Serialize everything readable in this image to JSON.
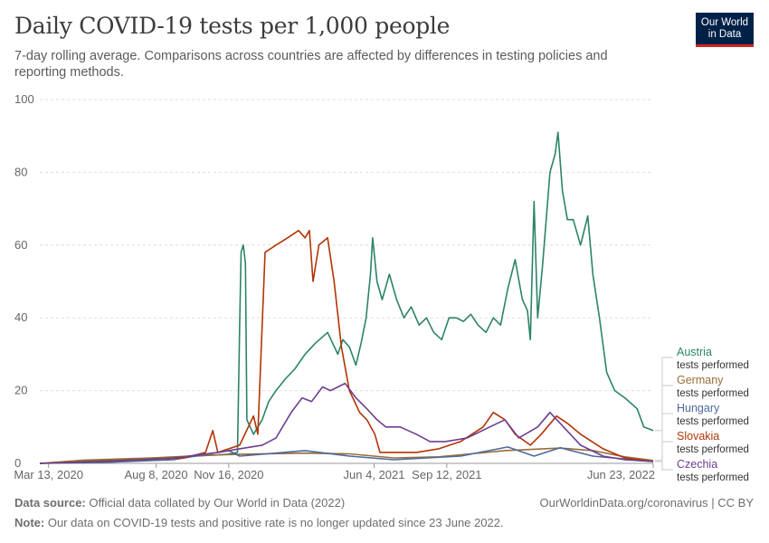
{
  "header": {
    "title": "Daily COVID-19 tests per 1,000 people",
    "subtitle": "7-day rolling average. Comparisons across countries are affected by differences in testing policies and reporting methods.",
    "logo_line1": "Our World",
    "logo_line2": "in Data"
  },
  "footer": {
    "source_label": "Data source:",
    "source_text": "Official data collated by Our World in Data (2022)",
    "note_label": "Note:",
    "note_text": "Our data on COVID-19 tests and positive rate is no longer updated since 23 June 2022.",
    "credit": "OurWorldinData.org/coronavirus | CC BY"
  },
  "chart_data": {
    "type": "line",
    "ylim": [
      0,
      100
    ],
    "yticks": [
      0,
      20,
      40,
      60,
      80,
      100
    ],
    "xlim": [
      "2020-03-01",
      "2022-06-23"
    ],
    "xticks": [
      {
        "date": "2020-03-13",
        "label": "Mar 13, 2020"
      },
      {
        "date": "2020-08-08",
        "label": "Aug 8, 2020"
      },
      {
        "date": "2020-11-16",
        "label": "Nov 16, 2020"
      },
      {
        "date": "2021-06-04",
        "label": "Jun 4, 2021"
      },
      {
        "date": "2021-09-12",
        "label": "Sep 12, 2021"
      },
      {
        "date": "2022-06-23",
        "label": "Jun 23, 2022"
      }
    ],
    "grid": "horizontal dashed",
    "legend": "right",
    "series": [
      {
        "name": "Austria",
        "sublabel": "tests performed",
        "color": "#2c8465",
        "points": [
          [
            "2020-03-01",
            0
          ],
          [
            "2020-04-01",
            0.3
          ],
          [
            "2020-05-01",
            0.6
          ],
          [
            "2020-06-01",
            0.8
          ],
          [
            "2020-08-01",
            1.2
          ],
          [
            "2020-10-01",
            2.0
          ],
          [
            "2020-11-15",
            2.5
          ],
          [
            "2020-11-28",
            3
          ],
          [
            "2020-12-01",
            38
          ],
          [
            "2020-12-03",
            58
          ],
          [
            "2020-12-06",
            60
          ],
          [
            "2020-12-09",
            55
          ],
          [
            "2020-12-11",
            12
          ],
          [
            "2020-12-20",
            8
          ],
          [
            "2021-01-01",
            12
          ],
          [
            "2021-01-10",
            17
          ],
          [
            "2021-01-20",
            20
          ],
          [
            "2021-02-01",
            23
          ],
          [
            "2021-02-15",
            26
          ],
          [
            "2021-03-01",
            30
          ],
          [
            "2021-03-15",
            33
          ],
          [
            "2021-04-01",
            36
          ],
          [
            "2021-04-08",
            33
          ],
          [
            "2021-04-15",
            30
          ],
          [
            "2021-04-22",
            34
          ],
          [
            "2021-05-01",
            32
          ],
          [
            "2021-05-10",
            27
          ],
          [
            "2021-05-17",
            33
          ],
          [
            "2021-05-24",
            40
          ],
          [
            "2021-05-30",
            52
          ],
          [
            "2021-06-02",
            62
          ],
          [
            "2021-06-08",
            50
          ],
          [
            "2021-06-15",
            45
          ],
          [
            "2021-06-25",
            52
          ],
          [
            "2021-07-05",
            45
          ],
          [
            "2021-07-15",
            40
          ],
          [
            "2021-07-25",
            43
          ],
          [
            "2021-08-05",
            38
          ],
          [
            "2021-08-15",
            40
          ],
          [
            "2021-08-25",
            36
          ],
          [
            "2021-09-05",
            34
          ],
          [
            "2021-09-15",
            40
          ],
          [
            "2021-09-25",
            40
          ],
          [
            "2021-10-05",
            39
          ],
          [
            "2021-10-15",
            41
          ],
          [
            "2021-10-25",
            38
          ],
          [
            "2021-11-05",
            36
          ],
          [
            "2021-11-15",
            40
          ],
          [
            "2021-11-25",
            38
          ],
          [
            "2021-12-05",
            48
          ],
          [
            "2021-12-15",
            56
          ],
          [
            "2021-12-25",
            45
          ],
          [
            "2022-01-01",
            42
          ],
          [
            "2022-01-05",
            34
          ],
          [
            "2022-01-10",
            72
          ],
          [
            "2022-01-15",
            40
          ],
          [
            "2022-01-22",
            55
          ],
          [
            "2022-02-01",
            80
          ],
          [
            "2022-02-08",
            85
          ],
          [
            "2022-02-12",
            91
          ],
          [
            "2022-02-18",
            75
          ],
          [
            "2022-02-25",
            67
          ],
          [
            "2022-03-05",
            67
          ],
          [
            "2022-03-15",
            60
          ],
          [
            "2022-03-25",
            68
          ],
          [
            "2022-04-01",
            52
          ],
          [
            "2022-04-10",
            40
          ],
          [
            "2022-04-20",
            25
          ],
          [
            "2022-05-01",
            20
          ],
          [
            "2022-05-15",
            18
          ],
          [
            "2022-06-01",
            15
          ],
          [
            "2022-06-10",
            10
          ],
          [
            "2022-06-23",
            9
          ]
        ]
      },
      {
        "name": "Germany",
        "sublabel": "tests performed",
        "color": "#986d39",
        "points": [
          [
            "2020-03-01",
            0
          ],
          [
            "2020-05-01",
            0.9
          ],
          [
            "2020-08-01",
            1.5
          ],
          [
            "2020-10-15",
            2.2
          ],
          [
            "2020-12-01",
            2.5
          ],
          [
            "2021-03-01",
            2.8
          ],
          [
            "2021-05-01",
            2.6
          ],
          [
            "2021-07-01",
            1.5
          ],
          [
            "2021-09-01",
            1.8
          ],
          [
            "2021-12-01",
            3.5
          ],
          [
            "2022-02-15",
            4.2
          ],
          [
            "2022-04-01",
            3.5
          ],
          [
            "2022-05-15",
            1.8
          ],
          [
            "2022-06-23",
            0.8
          ]
        ]
      },
      {
        "name": "Hungary",
        "sublabel": "tests performed",
        "color": "#4c6a9c",
        "points": [
          [
            "2020-03-01",
            0
          ],
          [
            "2020-06-01",
            0.3
          ],
          [
            "2020-09-01",
            1
          ],
          [
            "2020-11-16",
            3.5
          ],
          [
            "2020-12-01",
            2
          ],
          [
            "2021-03-01",
            3.5
          ],
          [
            "2021-05-01",
            2
          ],
          [
            "2021-07-01",
            1
          ],
          [
            "2021-10-01",
            2
          ],
          [
            "2021-12-05",
            4.5
          ],
          [
            "2022-01-10",
            2
          ],
          [
            "2022-02-15",
            4.3
          ],
          [
            "2022-04-01",
            2
          ],
          [
            "2022-06-23",
            0.5
          ]
        ]
      },
      {
        "name": "Slovakia",
        "sublabel": "tests performed",
        "color": "#b13507",
        "points": [
          [
            "2020-03-01",
            0
          ],
          [
            "2020-06-01",
            0.6
          ],
          [
            "2020-09-15",
            1.5
          ],
          [
            "2020-10-15",
            3
          ],
          [
            "2020-10-25",
            9
          ],
          [
            "2020-11-01",
            3
          ],
          [
            "2020-12-01",
            5
          ],
          [
            "2020-12-20",
            13
          ],
          [
            "2020-12-26",
            8
          ],
          [
            "2021-01-05",
            58
          ],
          [
            "2021-01-20",
            60
          ],
          [
            "2021-02-05",
            62
          ],
          [
            "2021-02-20",
            64
          ],
          [
            "2021-03-01",
            62
          ],
          [
            "2021-03-07",
            64
          ],
          [
            "2021-03-12",
            50
          ],
          [
            "2021-03-20",
            60
          ],
          [
            "2021-04-01",
            62
          ],
          [
            "2021-04-10",
            50
          ],
          [
            "2021-04-20",
            32
          ],
          [
            "2021-05-01",
            20
          ],
          [
            "2021-05-15",
            14
          ],
          [
            "2021-05-25",
            12
          ],
          [
            "2021-06-05",
            8
          ],
          [
            "2021-06-12",
            3
          ],
          [
            "2021-07-01",
            3
          ],
          [
            "2021-08-01",
            3
          ],
          [
            "2021-09-01",
            4
          ],
          [
            "2021-10-01",
            6
          ],
          [
            "2021-11-01",
            10
          ],
          [
            "2021-11-15",
            14
          ],
          [
            "2021-12-01",
            12
          ],
          [
            "2021-12-15",
            8
          ],
          [
            "2022-01-05",
            5
          ],
          [
            "2022-01-20",
            8
          ],
          [
            "2022-02-10",
            13
          ],
          [
            "2022-02-25",
            11
          ],
          [
            "2022-03-15",
            8
          ],
          [
            "2022-04-15",
            4
          ],
          [
            "2022-05-15",
            1.5
          ],
          [
            "2022-06-23",
            0.5
          ]
        ]
      },
      {
        "name": "Czechia",
        "sublabel": "tests performed",
        "color": "#6d3e91",
        "points": [
          [
            "2020-03-01",
            0
          ],
          [
            "2020-06-01",
            0.5
          ],
          [
            "2020-09-01",
            1.5
          ],
          [
            "2020-11-01",
            3
          ],
          [
            "2020-12-01",
            4
          ],
          [
            "2021-01-01",
            5
          ],
          [
            "2021-01-20",
            7
          ],
          [
            "2021-02-10",
            14
          ],
          [
            "2021-02-25",
            18
          ],
          [
            "2021-03-10",
            17
          ],
          [
            "2021-03-25",
            21
          ],
          [
            "2021-04-05",
            20
          ],
          [
            "2021-04-15",
            21
          ],
          [
            "2021-04-25",
            22
          ],
          [
            "2021-05-10",
            18
          ],
          [
            "2021-05-25",
            15
          ],
          [
            "2021-06-08",
            12
          ],
          [
            "2021-06-20",
            10
          ],
          [
            "2021-07-10",
            10
          ],
          [
            "2021-08-01",
            8
          ],
          [
            "2021-08-20",
            6
          ],
          [
            "2021-09-10",
            6
          ],
          [
            "2021-10-10",
            7
          ],
          [
            "2021-11-10",
            10
          ],
          [
            "2021-12-01",
            12
          ],
          [
            "2021-12-20",
            7
          ],
          [
            "2022-01-15",
            10
          ],
          [
            "2022-02-01",
            14
          ],
          [
            "2022-02-15",
            11
          ],
          [
            "2022-03-15",
            5
          ],
          [
            "2022-04-15",
            2
          ],
          [
            "2022-05-15",
            1
          ],
          [
            "2022-06-23",
            0.5
          ]
        ]
      }
    ]
  }
}
